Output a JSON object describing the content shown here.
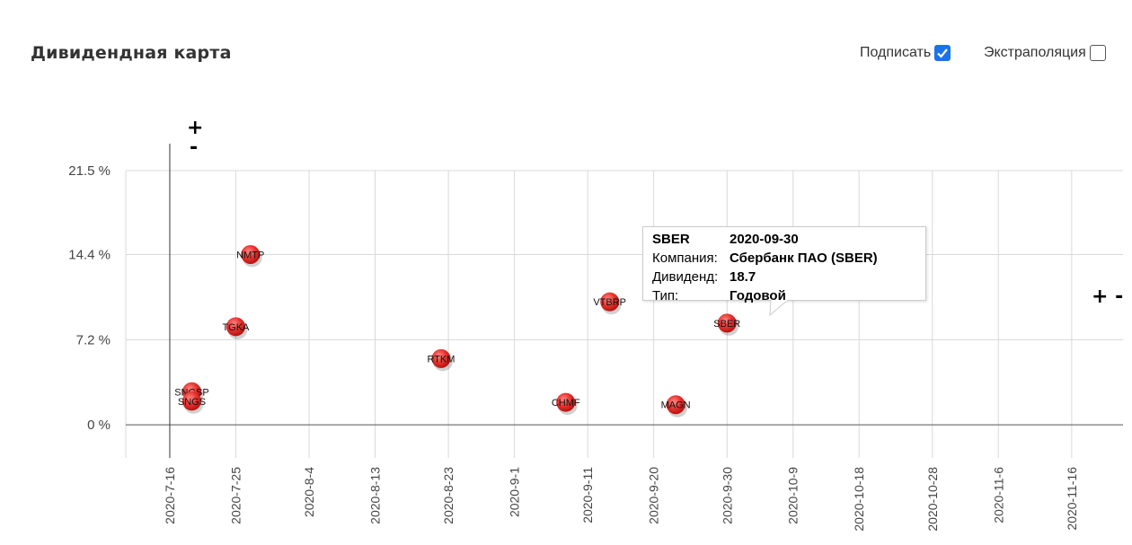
{
  "header": {
    "title": "Дивидендная карта",
    "label_toggle": "Подписать",
    "label_checked": true,
    "extrapolation_toggle": "Экстраполяция",
    "extrapolation_checked": false
  },
  "zoom": {
    "vertical_plus": "+",
    "vertical_minus": "-",
    "horizontal": "+ -"
  },
  "tooltip": {
    "ticker": "SBER",
    "date": "2020-09-30",
    "company_label": "Компания:",
    "company": "Сбербанк ПАО (SBER)",
    "dividend_label": "Дивиденд:",
    "dividend": "18.7",
    "type_label": "Тип:",
    "type": "Годовой"
  },
  "colors": {
    "point": "#e8322e",
    "point_highlight": "#ff8a85",
    "grid": "#d9d9d9",
    "axis": "#333333",
    "checkbox": "#1a73e8"
  },
  "chart_data": {
    "type": "scatter",
    "title": "Дивидендная карта",
    "xlabel": "",
    "ylabel": "",
    "x_ticks": [
      "2020-7-16",
      "2020-7-25",
      "2020-8-4",
      "2020-8-13",
      "2020-8-23",
      "2020-9-1",
      "2020-9-11",
      "2020-9-20",
      "2020-9-30",
      "2020-10-9",
      "2020-10-18",
      "2020-10-28",
      "2020-11-6",
      "2020-11-16"
    ],
    "y_ticks": [
      "0 %",
      "7.2 %",
      "14.4 %",
      "21.5 %"
    ],
    "xlim": [
      "2020-07-10",
      "2020-11-23"
    ],
    "ylim": [
      -2.8,
      21.5
    ],
    "y_unit": "%",
    "grid": true,
    "points": [
      {
        "label": "NMTP",
        "x": "2020-07-27",
        "y": 14.4
      },
      {
        "label": "TGKA",
        "x": "2020-07-25",
        "y": 8.3
      },
      {
        "label": "RTKM",
        "x": "2020-08-22",
        "y": 5.6
      },
      {
        "label": "SNGSP",
        "x": "2020-07-19",
        "y": 2.8
      },
      {
        "label": "SNGS",
        "x": "2020-07-19",
        "y": 2.0
      },
      {
        "label": "CHMF",
        "x": "2020-09-08",
        "y": 1.9
      },
      {
        "label": "VTBRP",
        "x": "2020-09-14",
        "y": 10.4
      },
      {
        "label": "MAGN",
        "x": "2020-09-23",
        "y": 1.7
      },
      {
        "label": "SBER",
        "x": "2020-09-30",
        "y": 8.6
      }
    ]
  }
}
